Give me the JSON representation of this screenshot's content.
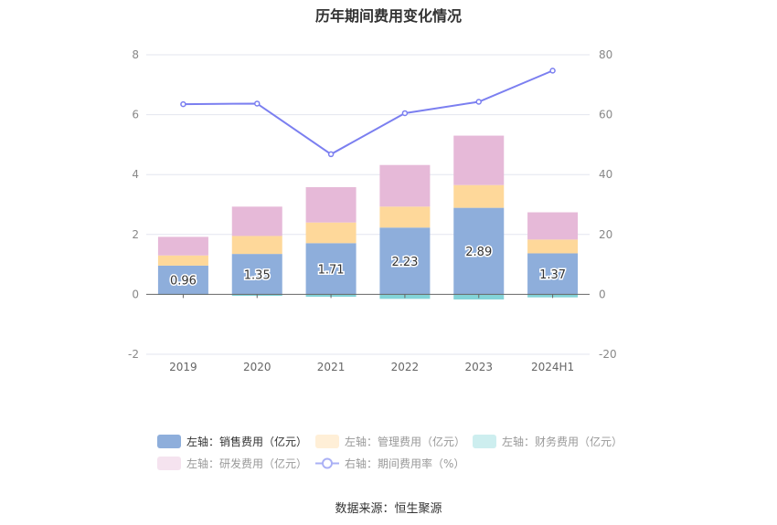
{
  "title": "历年期间费用变化情况",
  "source": "数据来源：恒生聚源",
  "chart_data": {
    "type": "bar",
    "title": "历年期间费用变化情况",
    "categories": [
      "2019",
      "2020",
      "2021",
      "2022",
      "2023",
      "2024H1"
    ],
    "stacked": true,
    "left_axis": {
      "ylim": [
        -2,
        8
      ],
      "ticks": [
        "-2",
        "0",
        "2",
        "4",
        "6",
        "8"
      ]
    },
    "right_axis": {
      "ylim": [
        -20,
        80
      ],
      "ticks": [
        "-20",
        "0",
        "20",
        "40",
        "60",
        "80"
      ]
    },
    "grid": true,
    "legend_position": "bottom",
    "series": [
      {
        "name": "左轴：销售费用（亿元）",
        "type": "bar",
        "axis": "left",
        "color": "#8eaedb",
        "values": [
          0.96,
          1.35,
          1.71,
          2.23,
          2.89,
          1.37
        ],
        "labels": [
          "0.96",
          "1.35",
          "1.71",
          "2.23",
          "2.89",
          "1.37"
        ]
      },
      {
        "name": "左轴：管理费用（亿元）",
        "type": "bar",
        "axis": "left",
        "color": "#fed89a",
        "values": [
          0.34,
          0.6,
          0.69,
          0.7,
          0.76,
          0.46
        ]
      },
      {
        "name": "左轴：财务费用（亿元）",
        "type": "bar",
        "axis": "left",
        "color": "#83d4d8",
        "values": [
          -0.01,
          -0.05,
          -0.08,
          -0.15,
          -0.17,
          -0.1
        ]
      },
      {
        "name": "左轴：研发费用（亿元）",
        "type": "bar",
        "axis": "left",
        "color": "#e6b9d8",
        "values": [
          0.62,
          0.98,
          1.18,
          1.39,
          1.65,
          0.91
        ]
      },
      {
        "name": "右轴：期间费用率（%）",
        "type": "line",
        "axis": "right",
        "color": "#7b7ff0",
        "values": [
          63.5,
          63.7,
          46.8,
          60.5,
          64.3,
          74.7
        ]
      }
    ]
  }
}
